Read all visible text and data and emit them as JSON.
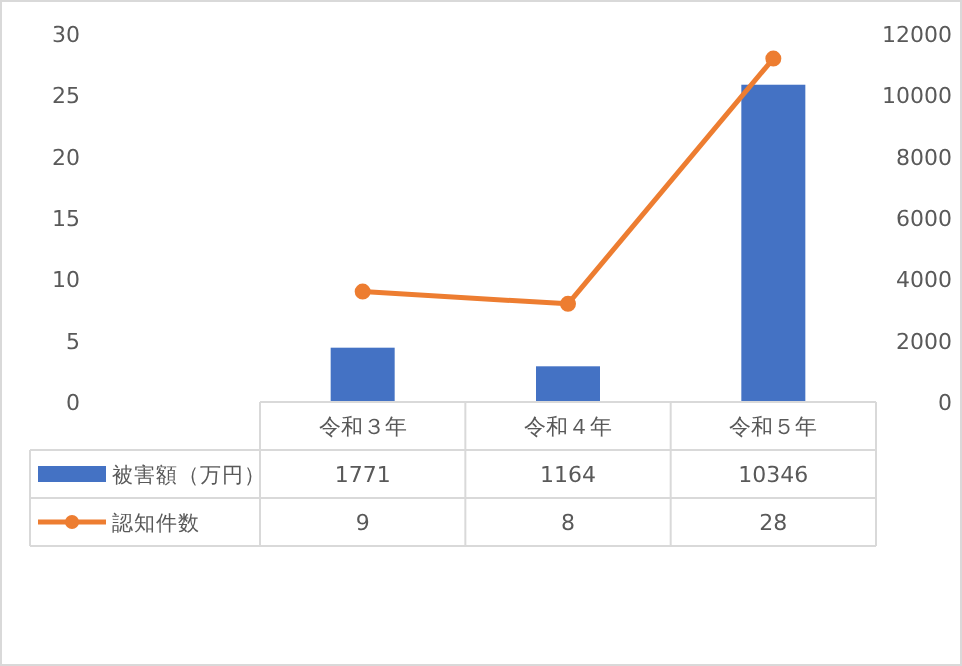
{
  "chart_data": {
    "type": "bar",
    "categories": [
      "令和３年",
      "令和４年",
      "令和５年"
    ],
    "series": [
      {
        "name": "被害額（万円）",
        "axis": "y2",
        "color": "#4472c4",
        "values": [
          1771,
          1164,
          10346
        ]
      },
      {
        "name": "認知件数",
        "type": "line",
        "color": "#ed7d31",
        "marker": "circle",
        "values": [
          9,
          8,
          28
        ]
      }
    ],
    "ylim": [
      0,
      30
    ],
    "yticks": [
      0,
      5,
      10,
      15,
      20,
      25,
      30
    ],
    "y2lim": [
      0,
      12000
    ],
    "y2ticks": [
      0,
      2000,
      4000,
      6000,
      8000,
      10000,
      12000
    ],
    "data_labels": true,
    "legend": "bottom"
  }
}
